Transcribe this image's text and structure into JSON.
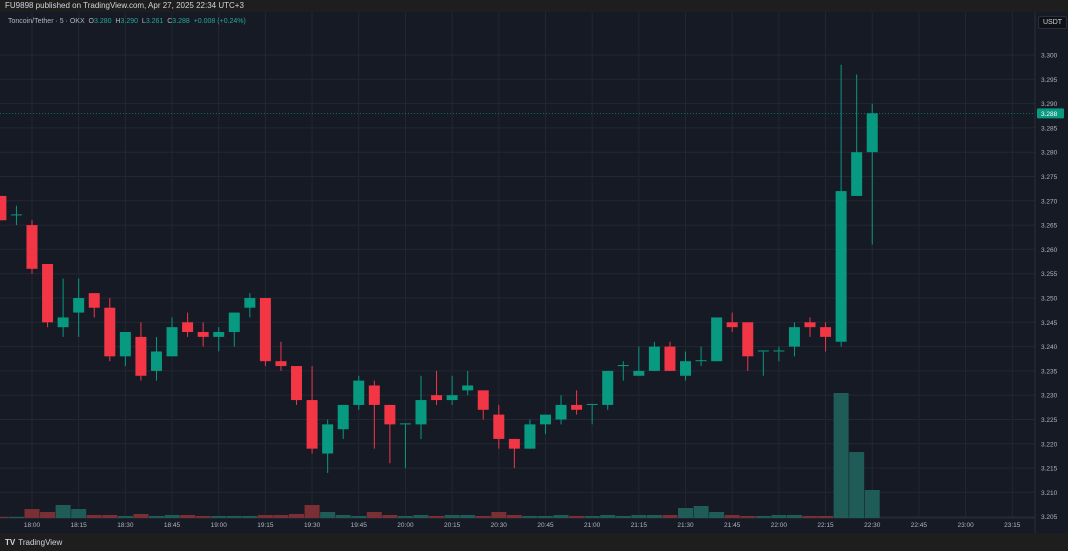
{
  "header": {
    "published": "FU9898 published on TradingView.com, Apr 27, 2025 22:34 UTC+3"
  },
  "legend": {
    "symbol": "Toncoin/Tether · 5 · OKX",
    "o_label": "O",
    "o": "3.280",
    "h_label": "H",
    "h": "3.290",
    "l_label": "L",
    "l": "3.261",
    "c_label": "C",
    "c": "3.288",
    "change": "+0.008 (+0.24%)"
  },
  "currency": "USDT",
  "footer": {
    "brand": "TradingView"
  },
  "colors": {
    "up": "#089981",
    "down": "#f23645",
    "up_volume": "#1f5c57",
    "down_volume": "#7a2f35",
    "background": "#161a25",
    "grid": "#232733",
    "last_price": "#089981"
  },
  "chart_data": {
    "type": "candlestick",
    "interval": "5",
    "ylim": [
      3.205,
      3.302
    ],
    "grid": true,
    "last_price": "3.288",
    "y_ticks": [
      "3.300",
      "3.295",
      "3.290",
      "3.285",
      "3.280",
      "3.275",
      "3.270",
      "3.265",
      "3.260",
      "3.255",
      "3.250",
      "3.245",
      "3.240",
      "3.235",
      "3.230",
      "3.225",
      "3.220",
      "3.215",
      "3.210",
      "3.205"
    ],
    "x_ticks": [
      "18:00",
      "18:15",
      "18:30",
      "18:45",
      "19:00",
      "19:15",
      "19:30",
      "19:45",
      "20:00",
      "20:15",
      "20:30",
      "20:45",
      "21:00",
      "21:15",
      "21:30",
      "21:45",
      "22:00",
      "22:15",
      "22:30",
      "22:45",
      "23:00",
      "23:15"
    ],
    "candles": [
      [
        "17:50",
        3.271,
        3.271,
        3.266,
        3.266,
        1
      ],
      [
        "17:55",
        3.267,
        3.269,
        3.265,
        3.2672,
        1
      ],
      [
        "18:00",
        3.265,
        3.266,
        3.255,
        3.256,
        9
      ],
      [
        "18:05",
        3.257,
        3.257,
        3.244,
        3.245,
        6
      ],
      [
        "18:10",
        3.244,
        3.254,
        3.242,
        3.246,
        13
      ],
      [
        "18:15",
        3.247,
        3.254,
        3.242,
        3.25,
        9
      ],
      [
        "18:20",
        3.251,
        3.251,
        3.246,
        3.248,
        3
      ],
      [
        "18:25",
        3.248,
        3.25,
        3.237,
        3.238,
        3
      ],
      [
        "18:30",
        3.238,
        3.243,
        3.236,
        3.243,
        2
      ],
      [
        "18:35",
        3.242,
        3.245,
        3.233,
        3.234,
        4
      ],
      [
        "18:40",
        3.235,
        3.242,
        3.233,
        3.239,
        2
      ],
      [
        "18:45",
        3.238,
        3.246,
        3.238,
        3.244,
        3
      ],
      [
        "18:50",
        3.245,
        3.247,
        3.242,
        3.243,
        3
      ],
      [
        "18:55",
        3.243,
        3.245,
        3.24,
        3.242,
        2
      ],
      [
        "19:00",
        3.242,
        3.244,
        3.239,
        3.243,
        2
      ],
      [
        "19:05",
        3.243,
        3.247,
        3.24,
        3.247,
        2
      ],
      [
        "19:10",
        3.248,
        3.251,
        3.246,
        3.25,
        2
      ],
      [
        "19:15",
        3.25,
        3.25,
        3.236,
        3.237,
        3
      ],
      [
        "19:20",
        3.237,
        3.241,
        3.235,
        3.236,
        3
      ],
      [
        "19:25",
        3.236,
        3.236,
        3.228,
        3.229,
        4
      ],
      [
        "19:30",
        3.229,
        3.236,
        3.218,
        3.219,
        13
      ],
      [
        "19:35",
        3.218,
        3.225,
        3.214,
        3.224,
        6
      ],
      [
        "19:40",
        3.223,
        3.228,
        3.221,
        3.228,
        3
      ],
      [
        "19:45",
        3.228,
        3.234,
        3.227,
        3.233,
        2
      ],
      [
        "19:50",
        3.232,
        3.233,
        3.219,
        3.228,
        6
      ],
      [
        "19:55",
        3.228,
        3.228,
        3.216,
        3.224,
        3
      ],
      [
        "20:00",
        3.224,
        3.224,
        3.215,
        3.2242,
        2
      ],
      [
        "20:05",
        3.224,
        3.234,
        3.221,
        3.229,
        3
      ],
      [
        "20:10",
        3.23,
        3.235,
        3.228,
        3.229,
        2
      ],
      [
        "20:15",
        3.229,
        3.234,
        3.228,
        3.23,
        3
      ],
      [
        "20:20",
        3.231,
        3.235,
        3.23,
        3.232,
        3
      ],
      [
        "20:25",
        3.231,
        3.231,
        3.225,
        3.227,
        2
      ],
      [
        "20:30",
        3.226,
        3.228,
        3.219,
        3.221,
        6
      ],
      [
        "20:35",
        3.221,
        3.221,
        3.215,
        3.219,
        3
      ],
      [
        "20:40",
        3.219,
        3.225,
        3.219,
        3.224,
        2
      ],
      [
        "20:45",
        3.224,
        3.226,
        3.222,
        3.226,
        2
      ],
      [
        "20:50",
        3.225,
        3.23,
        3.224,
        3.228,
        3
      ],
      [
        "20:55",
        3.228,
        3.231,
        3.226,
        3.227,
        2
      ],
      [
        "21:00",
        3.228,
        3.228,
        3.224,
        3.2282,
        2
      ],
      [
        "21:05",
        3.228,
        3.235,
        3.227,
        3.235,
        3
      ],
      [
        "21:10",
        3.236,
        3.237,
        3.233,
        3.2362,
        2
      ],
      [
        "21:15",
        3.234,
        3.24,
        3.234,
        3.235,
        3
      ],
      [
        "21:20",
        3.235,
        3.241,
        3.235,
        3.24,
        3
      ],
      [
        "21:25",
        3.24,
        3.241,
        3.235,
        3.235,
        3
      ],
      [
        "21:30",
        3.234,
        3.239,
        3.233,
        3.237,
        10
      ],
      [
        "21:35",
        3.237,
        3.24,
        3.236,
        3.2372,
        12
      ],
      [
        "21:40",
        3.237,
        3.246,
        3.237,
        3.246,
        6
      ],
      [
        "21:45",
        3.245,
        3.247,
        3.243,
        3.244,
        3
      ],
      [
        "21:50",
        3.245,
        3.245,
        3.235,
        3.238,
        2
      ],
      [
        "21:55",
        3.239,
        3.239,
        3.234,
        3.2392,
        2
      ],
      [
        "22:00",
        3.239,
        3.24,
        3.237,
        3.2392,
        3
      ],
      [
        "22:05",
        3.24,
        3.245,
        3.238,
        3.244,
        3
      ],
      [
        "22:10",
        3.245,
        3.246,
        3.242,
        3.244,
        2
      ],
      [
        "22:15",
        3.244,
        3.245,
        3.239,
        3.242,
        2
      ],
      [
        "22:20",
        3.241,
        3.298,
        3.24,
        3.272,
        125
      ],
      [
        "22:25",
        3.271,
        3.296,
        3.271,
        3.28,
        66
      ],
      [
        "22:30",
        3.28,
        3.29,
        3.261,
        3.288,
        28
      ]
    ]
  }
}
